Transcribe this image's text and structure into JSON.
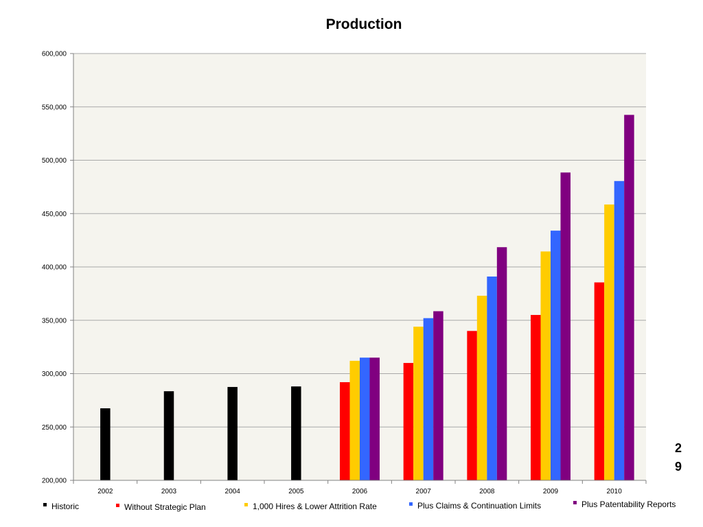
{
  "slide": {
    "page_number_line1": "2",
    "page_number_line2": "9"
  },
  "chart_data": {
    "type": "bar",
    "title": "Production",
    "xlabel": "",
    "ylabel": "",
    "ylim": [
      200000,
      600000
    ],
    "ytick_step": 50000,
    "yticks": [
      "200,000",
      "250,000",
      "300,000",
      "350,000",
      "400,000",
      "450,000",
      "500,000",
      "550,000",
      "600,000"
    ],
    "grid": "horizontal",
    "legend_position": "bottom",
    "plot_background": "#f5f4ee",
    "categories": [
      "2002",
      "2003",
      "2004",
      "2005",
      "2006",
      "2007",
      "2008",
      "2009",
      "2010"
    ],
    "series": [
      {
        "name": "Historic",
        "color": "#000000",
        "values": [
          267500,
          283500,
          287500,
          288000,
          null,
          null,
          null,
          null,
          null
        ]
      },
      {
        "name": "Without Strategic Plan",
        "color": "#ff0000",
        "values": [
          null,
          null,
          null,
          null,
          292000,
          310000,
          340000,
          355000,
          385500
        ]
      },
      {
        "name": "1,000 Hires & Lower Attrition Rate",
        "color": "#ffcc00",
        "values": [
          null,
          null,
          null,
          null,
          312000,
          344000,
          373000,
          414500,
          458500
        ]
      },
      {
        "name": "Plus Claims & Continuation Limits",
        "color": "#3366ff",
        "values": [
          null,
          null,
          null,
          null,
          315000,
          352000,
          391000,
          434000,
          480500
        ]
      },
      {
        "name": "Plus Patentability Reports",
        "color": "#800080",
        "values": [
          null,
          null,
          null,
          null,
          315000,
          358500,
          418500,
          488500,
          542500
        ]
      }
    ]
  }
}
